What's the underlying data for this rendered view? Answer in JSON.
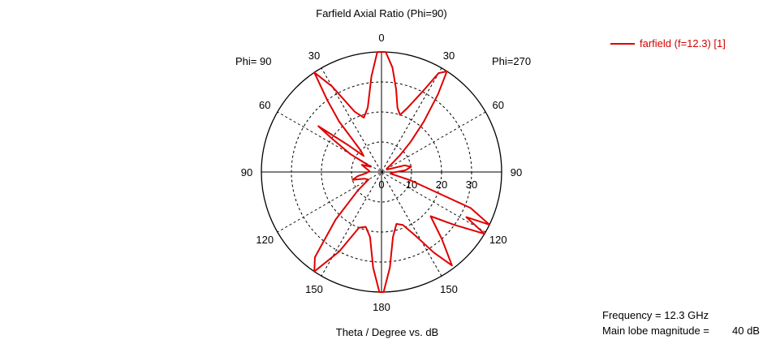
{
  "chart_data": {
    "type": "polar-line",
    "title": "Farfield  Axial Ratio (Phi=90)",
    "xlabel": "Theta / Degree vs. dB",
    "side_labels": {
      "left": "Phi= 90",
      "right": "Phi=270"
    },
    "angle_tick_labels": [
      "0",
      "30",
      "60",
      "90",
      "120",
      "150",
      "180",
      "150",
      "120",
      "90",
      "60",
      "30"
    ],
    "radial_tick_labels": [
      "0",
      "10",
      "20",
      "30"
    ],
    "radial_range_db": [
      0,
      40
    ],
    "grid": true,
    "legend_position": "top-right",
    "series": [
      {
        "name": "farfield (f=12.3) [1]",
        "color": "#e00000",
        "points_theta_deg_db": [
          [
            0,
            40
          ],
          [
            2,
            40
          ],
          [
            6,
            35
          ],
          [
            10,
            28
          ],
          [
            14,
            22
          ],
          [
            18,
            20
          ],
          [
            22,
            23
          ],
          [
            27,
            30
          ],
          [
            30,
            38
          ],
          [
            33,
            40
          ],
          [
            36,
            32
          ],
          [
            40,
            22
          ],
          [
            44,
            14
          ],
          [
            48,
            8
          ],
          [
            52,
            4
          ],
          [
            58,
            2
          ],
          [
            66,
            2
          ],
          [
            74,
            8
          ],
          [
            80,
            10
          ],
          [
            86,
            8
          ],
          [
            92,
            4
          ],
          [
            100,
            3
          ],
          [
            106,
            10
          ],
          [
            112,
            32
          ],
          [
            116,
            40
          ],
          [
            118,
            32
          ],
          [
            121,
            40
          ],
          [
            126,
            30
          ],
          [
            132,
            22
          ],
          [
            138,
            30
          ],
          [
            143,
            39
          ],
          [
            147,
            32
          ],
          [
            152,
            24
          ],
          [
            158,
            19
          ],
          [
            164,
            18
          ],
          [
            170,
            22
          ],
          [
            175,
            32
          ],
          [
            179,
            40
          ],
          [
            181,
            40
          ],
          [
            185,
            32
          ],
          [
            190,
            22
          ],
          [
            196,
            19
          ],
          [
            202,
            20
          ],
          [
            208,
            30
          ],
          [
            214,
            40
          ],
          [
            218,
            36
          ],
          [
            224,
            22
          ],
          [
            232,
            10
          ],
          [
            240,
            5
          ],
          [
            248,
            6
          ],
          [
            255,
            10
          ],
          [
            260,
            8
          ],
          [
            266,
            5
          ],
          [
            274,
            4
          ],
          [
            282,
            5
          ],
          [
            290,
            7
          ],
          [
            296,
            4
          ],
          [
            300,
            12
          ],
          [
            304,
            20
          ],
          [
            306,
            26
          ],
          [
            309,
            14
          ],
          [
            312,
            8
          ],
          [
            316,
            10
          ],
          [
            320,
            22
          ],
          [
            323,
            30
          ],
          [
            326,
            40
          ],
          [
            330,
            33
          ],
          [
            336,
            22
          ],
          [
            342,
            19
          ],
          [
            348,
            22
          ],
          [
            354,
            32
          ],
          [
            358,
            40
          ],
          [
            360,
            40
          ]
        ]
      }
    ]
  },
  "info": {
    "frequency_label": "Frequency = 12.3 GHz",
    "main_lobe_label": "Main lobe magnitude =",
    "main_lobe_value": "40 dB"
  }
}
